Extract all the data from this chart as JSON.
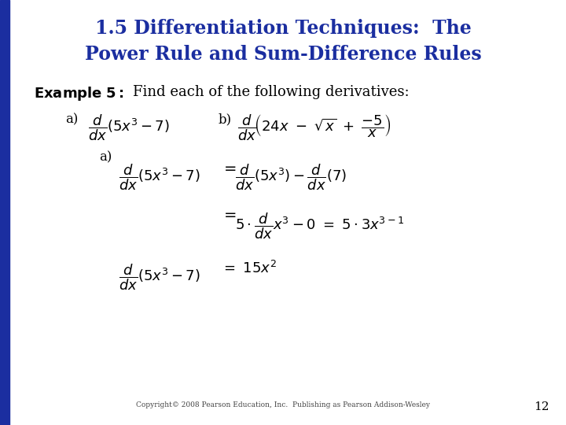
{
  "title_line1": "1.5 Differentiation Techniques:  The",
  "title_line2": "Power Rule and Sum-Difference Rules",
  "title_color": "#1B2EA0",
  "title_fontsize": 17,
  "background_color": "#FFFFFF",
  "left_bar_color": "#1B2EA0",
  "copyright_text": "Copyright© 2008 Pearson Education, Inc.  Publishing as Pearson Addison-Wesley",
  "page_number": "12",
  "body_text_color": "#000000",
  "math_fontsize": 13
}
